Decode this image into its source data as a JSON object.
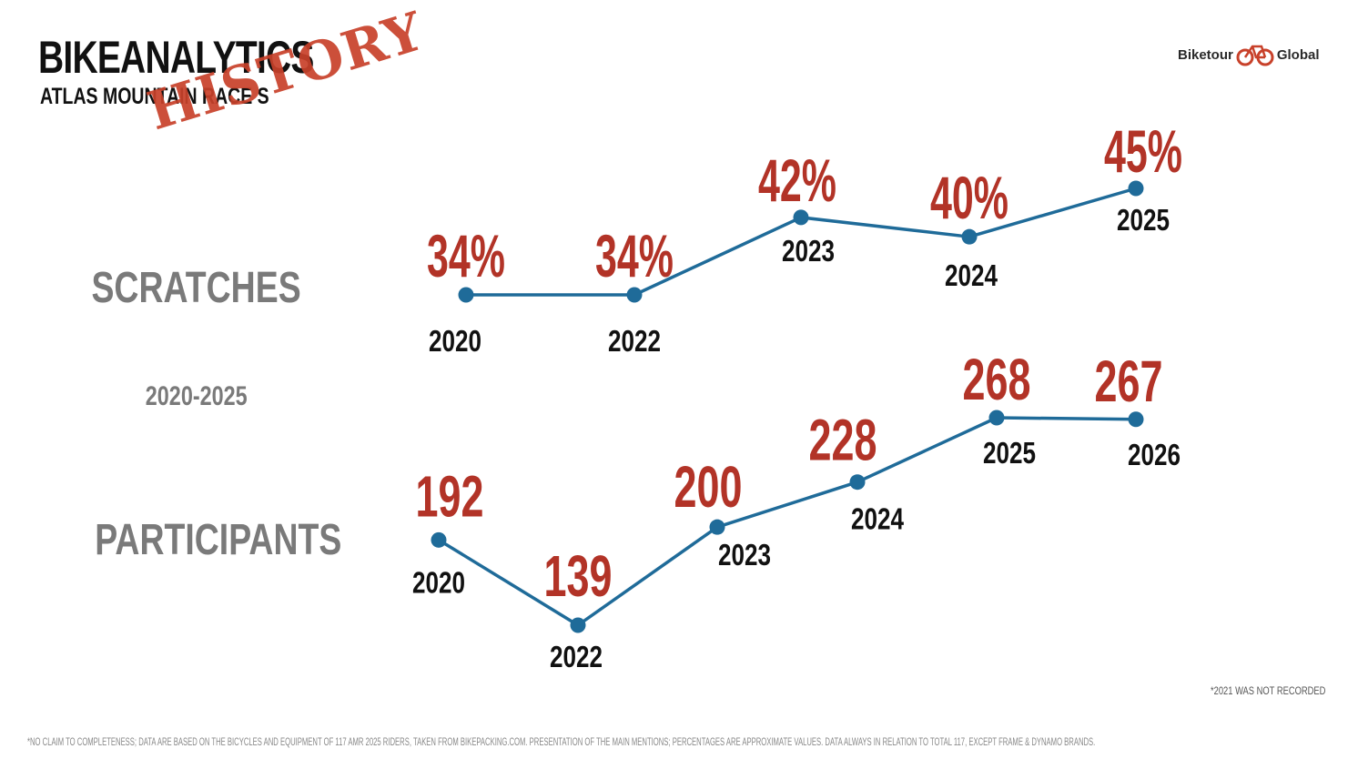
{
  "header": {
    "title": "BIKEANALYTICS",
    "subtitle": "ATLAS MOUNTAIN RACE S",
    "stamp": "HISTORY"
  },
  "logo": {
    "left_text": "Biketour",
    "right_text": "Global",
    "icon": "bicycle-icon"
  },
  "labels": {
    "scratches": "SCRATCHES",
    "years": "2020-2025",
    "participants": "PARTICIPANTS"
  },
  "note": "*2021 WAS NOT RECORDED",
  "footnote": "*NO CLAIM TO COMPLETENESS; DATA ARE BASED ON THE BICYCLES AND EQUIPMENT OF 117 AMR 2025 RIDERS, TAKEN FROM BIKEPACKING.COM. PRESENTATION OF THE MAIN MENTIONS; PERCENTAGES ARE APPROXIMATE VALUES. DATA ALWAYS IN RELATION TO TOTAL 117, EXCEPT FRAME & DYNAMO BRANDS.",
  "colors": {
    "line": "#1f6b99",
    "value": "#b23327",
    "year": "#111111"
  },
  "chart_data": [
    {
      "type": "line",
      "name": "Scratches",
      "categories": [
        "2020",
        "2022",
        "2023",
        "2024",
        "2025"
      ],
      "values": [
        34,
        34,
        42,
        40,
        45
      ],
      "data_labels": [
        "34%",
        "34%",
        "42%",
        "40%",
        "45%"
      ],
      "ylim": [
        34,
        45
      ],
      "ylabel": "%"
    },
    {
      "type": "line",
      "name": "Participants",
      "categories": [
        "2020",
        "2022",
        "2023",
        "2024",
        "2025",
        "2026"
      ],
      "values": [
        192,
        139,
        200,
        228,
        268,
        267
      ],
      "data_labels": [
        "192",
        "139",
        "200",
        "228",
        "268",
        "267"
      ],
      "ylim": [
        139,
        268
      ]
    }
  ]
}
